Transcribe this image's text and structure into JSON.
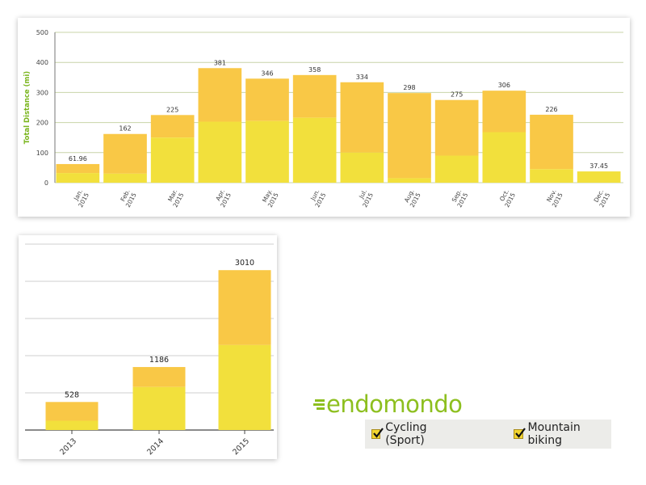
{
  "colors": {
    "top_segment": "#f9c846",
    "bottom_segment": "#f2e03c",
    "axis_label": "#7ab51d",
    "grid": "#c8d4a8",
    "brand": "#8dbf1f"
  },
  "chart_data": [
    {
      "type": "bar",
      "stacked": true,
      "ylabel": "Total Distance (mi)",
      "xlabel": "",
      "ylim": [
        0,
        500
      ],
      "yticks": [
        "0",
        "100",
        "200",
        "300",
        "400",
        "500"
      ],
      "grid": true,
      "categories": [
        [
          "Jan.",
          "2015"
        ],
        [
          "Feb.",
          "2015"
        ],
        [
          "Mar.",
          "2015"
        ],
        [
          "Apr.",
          "2015"
        ],
        [
          "May.",
          "2015"
        ],
        [
          "Jun.",
          "2015"
        ],
        [
          "Jul.",
          "2015"
        ],
        [
          "Aug.",
          "2015"
        ],
        [
          "Sep.",
          "2015"
        ],
        [
          "Oct.",
          "2015"
        ],
        [
          "Nov.",
          "2015"
        ],
        [
          "Dec.",
          "2015"
        ]
      ],
      "totals": [
        61.96,
        162,
        225,
        381,
        346,
        358,
        334,
        298,
        275,
        306,
        226,
        37.45
      ],
      "total_labels": [
        "61.96",
        "162",
        "225",
        "381",
        "346",
        "358",
        "334",
        "298",
        "275",
        "306",
        "226",
        "37.45"
      ],
      "bottom_values": [
        32,
        30,
        150,
        203,
        205,
        216,
        100,
        15,
        90,
        168,
        45,
        37.45
      ]
    },
    {
      "type": "bar",
      "stacked": true,
      "ylim": [
        0,
        3500
      ],
      "grid": true,
      "categories": [
        "2013",
        "2014",
        "2015"
      ],
      "totals": [
        528,
        1186,
        3010
      ],
      "total_labels": [
        "528",
        "1186",
        "3010"
      ],
      "bottom_values": [
        175,
        810,
        1600
      ]
    }
  ],
  "brand": {
    "logo_text": "endomondo"
  },
  "legend": {
    "items": [
      {
        "label": "Cycling (Sport)",
        "checked": true
      },
      {
        "label": "Mountain biking",
        "checked": true
      }
    ]
  }
}
